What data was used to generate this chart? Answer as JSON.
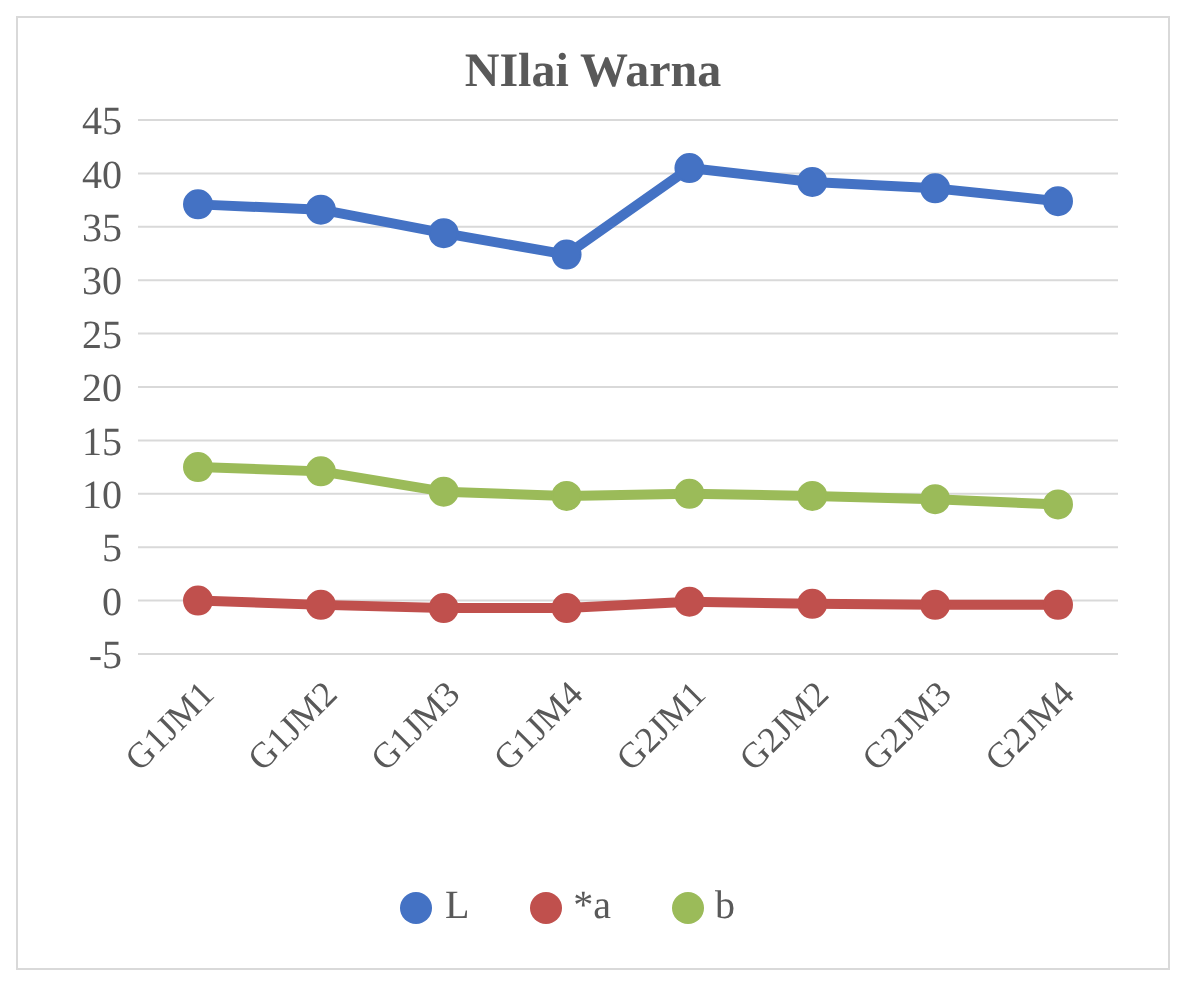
{
  "chart_data": {
    "type": "line",
    "title": "NIlai Warna",
    "categories": [
      "G1JM1",
      "G1JM2",
      "G1JM3",
      "G1JM4",
      "G2JM1",
      "G2JM2",
      "G2JM3",
      "G2JM4"
    ],
    "series": [
      {
        "name": "L",
        "color": "#4472c4",
        "values": [
          37.1,
          36.6,
          34.4,
          32.4,
          40.5,
          39.2,
          38.6,
          37.4
        ]
      },
      {
        "name": "*a",
        "color": "#c0504d",
        "values": [
          0,
          -0.4,
          -0.7,
          -0.7,
          -0.1,
          -0.3,
          -0.4,
          -0.4
        ]
      },
      {
        "name": "b",
        "color": "#9bbb59",
        "values": [
          12.5,
          12.1,
          10.2,
          9.8,
          10.0,
          9.8,
          9.5,
          9.0
        ]
      }
    ],
    "ylim": [
      -5,
      45
    ],
    "yticks": [
      -5,
      0,
      5,
      10,
      15,
      20,
      25,
      30,
      35,
      40,
      45
    ],
    "grid": "y",
    "legend": "bottom",
    "marker": "circle"
  }
}
